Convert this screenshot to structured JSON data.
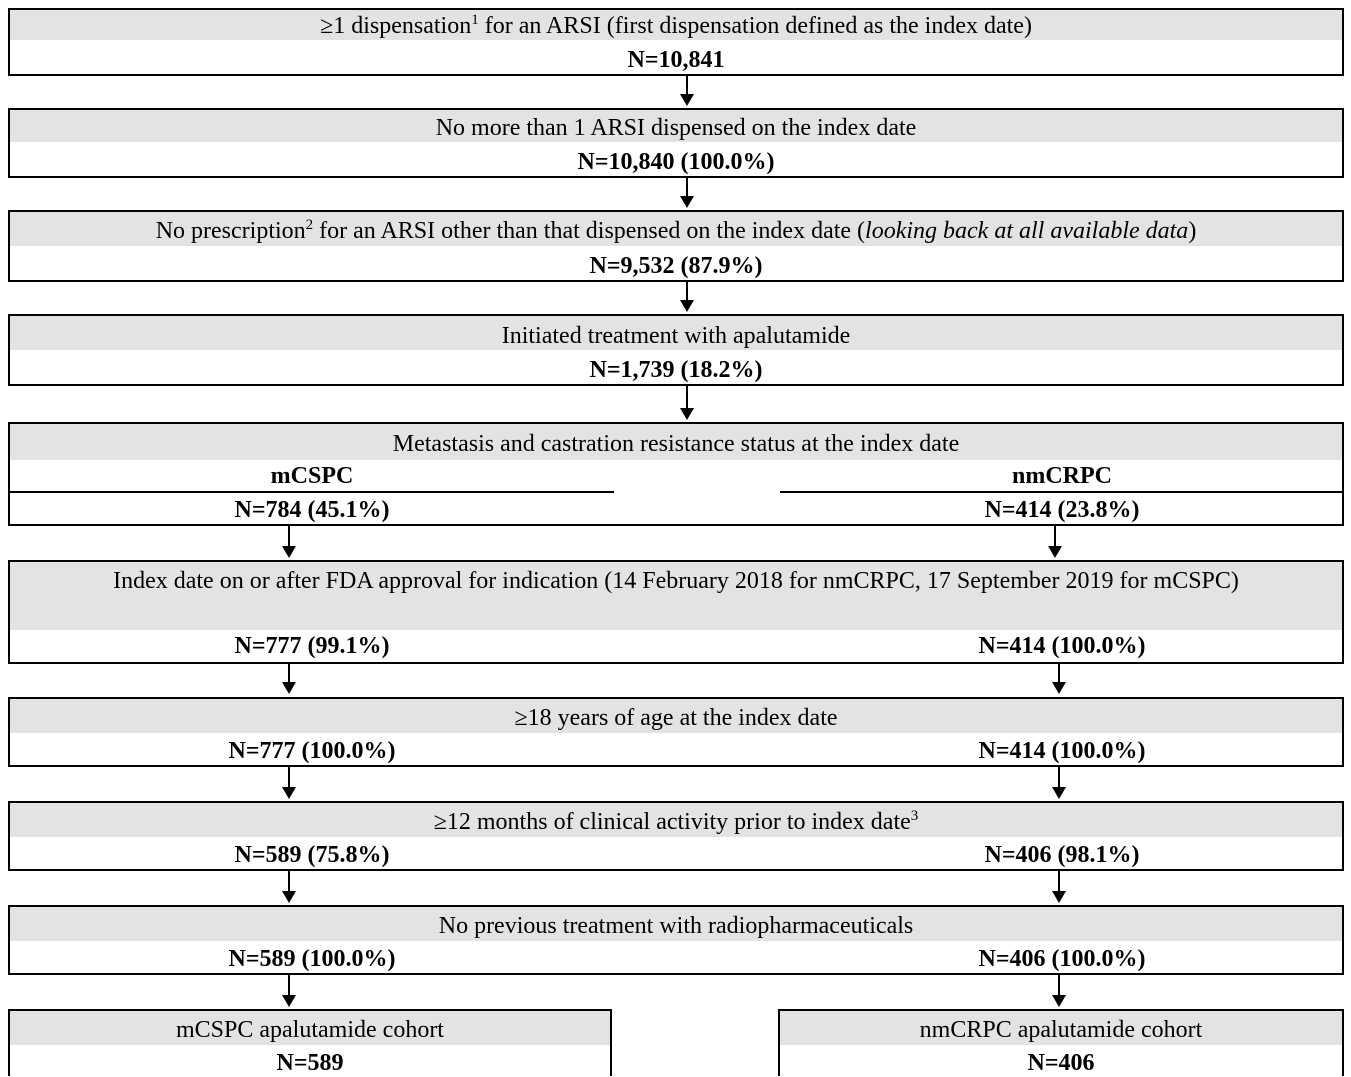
{
  "steps": [
    {
      "label_pre": "≥1 dispensation",
      "sup": "1",
      "label_post": " for an ARSI (first dispensation defined as the index date)",
      "n": "N=10,841"
    },
    {
      "label": "No more than 1 ARSI dispensed on the index date",
      "n": "N=10,840 (100.0%)"
    },
    {
      "label_pre": "No prescription",
      "sup": "2",
      "label_mid": " for an ARSI other than that dispensed on the index date (",
      "label_italic": "looking back at all available data",
      "label_post": ")",
      "n": "N=9,532 (87.9%)"
    },
    {
      "label": "Initiated treatment with apalutamide",
      "n": "N=1,739 (18.2%)"
    },
    {
      "label": "Metastasis and castration resistance status at the index date",
      "left_name": "mCSPC",
      "right_name": "nmCRPC",
      "left_n": "N=784  (45.1%)",
      "right_n": "N=414  (23.8%)"
    },
    {
      "label": "Index date on or after FDA approval for indication (14 February 2018 for nmCRPC, 17 September 2019 for mCSPC)",
      "left_n": "N=777  (99.1%)",
      "right_n": "N=414  (100.0%)"
    },
    {
      "label": "≥18 years of age at the index date",
      "left_n": "N=777  (100.0%)",
      "right_n": "N=414  (100.0%)"
    },
    {
      "label_pre": "≥12 months of clinical activity prior to index date",
      "sup": "3",
      "left_n": "N=589  (75.8%)",
      "right_n": "N=406  (98.1%)"
    },
    {
      "label": "No previous treatment with radiopharmaceuticals",
      "left_n": "N=589  (100.0%)",
      "right_n": "N=406  (100.0%)"
    }
  ],
  "cohorts": [
    {
      "label": "mCSPC apalutamide cohort",
      "n": "N=589"
    },
    {
      "label": "nmCRPC apalutamide cohort",
      "n": "N=406"
    }
  ]
}
